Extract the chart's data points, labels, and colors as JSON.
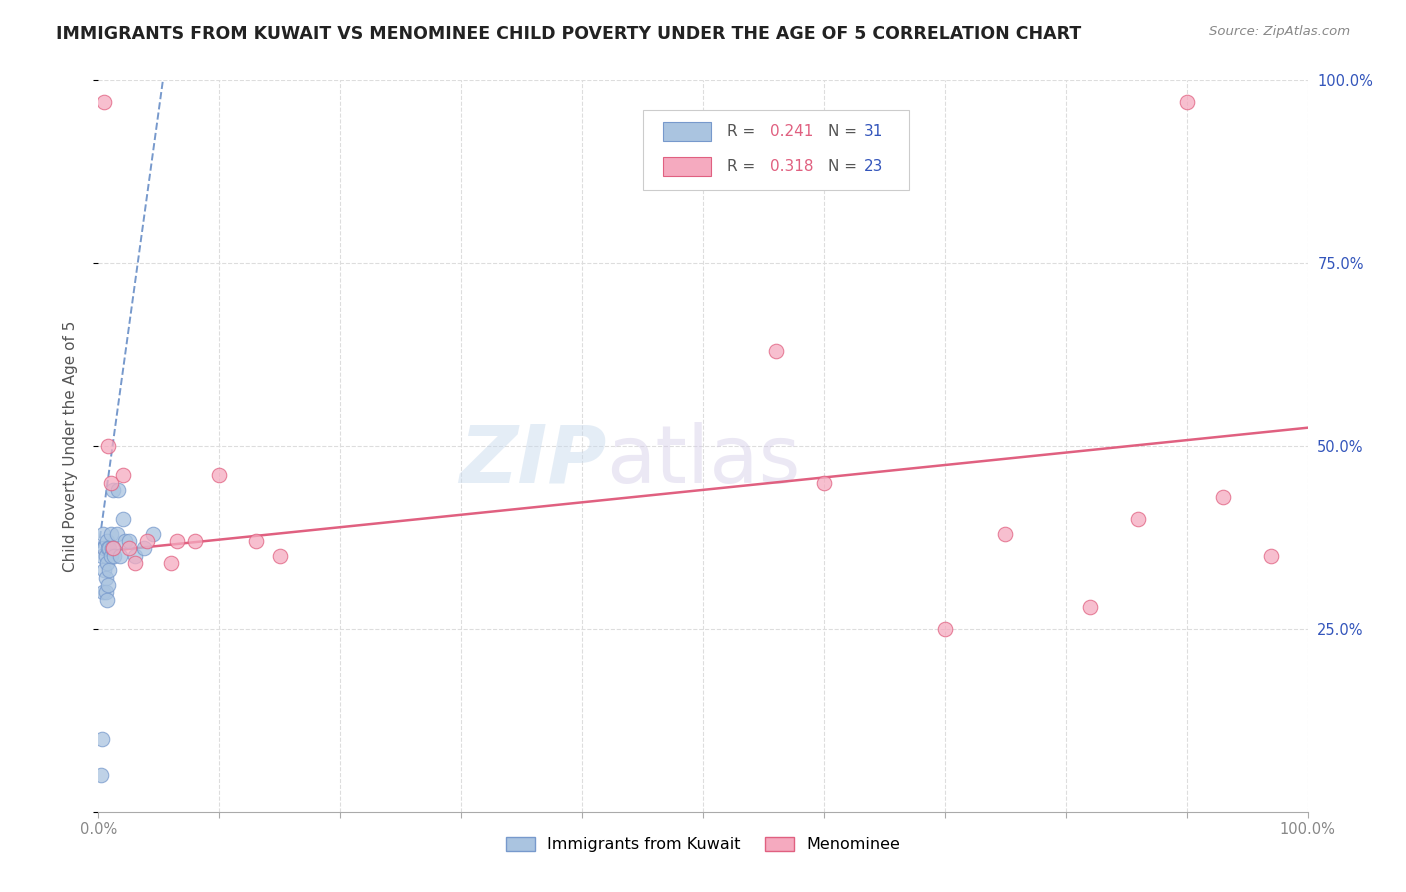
{
  "title": "IMMIGRANTS FROM KUWAIT VS MENOMINEE CHILD POVERTY UNDER THE AGE OF 5 CORRELATION CHART",
  "source": "Source: ZipAtlas.com",
  "ylabel": "Child Poverty Under the Age of 5",
  "xmin": 0.0,
  "xmax": 1.0,
  "ymin": 0.0,
  "ymax": 1.0,
  "kuwait_color": "#aac4e0",
  "kuwait_edge_color": "#7799cc",
  "menominee_color": "#f5aabf",
  "menominee_edge_color": "#e06080",
  "kuwait_line_color": "#7799cc",
  "menominee_line_color": "#e06080",
  "r_value_color": "#e06080",
  "n_value_color": "#3355bb",
  "kuwait_points_x": [
    0.002,
    0.003,
    0.003,
    0.004,
    0.004,
    0.005,
    0.005,
    0.006,
    0.006,
    0.006,
    0.007,
    0.007,
    0.007,
    0.008,
    0.008,
    0.009,
    0.009,
    0.01,
    0.01,
    0.011,
    0.012,
    0.013,
    0.015,
    0.016,
    0.018,
    0.02,
    0.022,
    0.025,
    0.03,
    0.038,
    0.045
  ],
  "kuwait_points_y": [
    0.05,
    0.1,
    0.35,
    0.3,
    0.38,
    0.33,
    0.36,
    0.32,
    0.35,
    0.3,
    0.29,
    0.34,
    0.37,
    0.31,
    0.36,
    0.33,
    0.36,
    0.35,
    0.38,
    0.36,
    0.44,
    0.35,
    0.38,
    0.44,
    0.35,
    0.4,
    0.37,
    0.37,
    0.35,
    0.36,
    0.38
  ],
  "menominee_points_x": [
    0.005,
    0.008,
    0.01,
    0.012,
    0.02,
    0.025,
    0.03,
    0.04,
    0.06,
    0.065,
    0.08,
    0.1,
    0.13,
    0.15,
    0.56,
    0.6,
    0.7,
    0.75,
    0.82,
    0.86,
    0.9,
    0.93,
    0.97
  ],
  "menominee_points_y": [
    0.97,
    0.5,
    0.45,
    0.36,
    0.46,
    0.36,
    0.34,
    0.37,
    0.34,
    0.37,
    0.37,
    0.46,
    0.37,
    0.35,
    0.63,
    0.45,
    0.25,
    0.38,
    0.28,
    0.4,
    0.97,
    0.43,
    0.35
  ],
  "kuwait_trend_x": [
    0.0,
    0.055
  ],
  "kuwait_trend_y": [
    0.36,
    1.02
  ],
  "menominee_trend_x": [
    0.0,
    1.0
  ],
  "menominee_trend_y": [
    0.355,
    0.525
  ],
  "grid_color": "#dddddd",
  "axis_color": "#aaaaaa",
  "tick_label_color": "#888888",
  "right_tick_color": "#3355bb",
  "ylabel_color": "#555555",
  "title_color": "#222222",
  "source_color": "#888888"
}
